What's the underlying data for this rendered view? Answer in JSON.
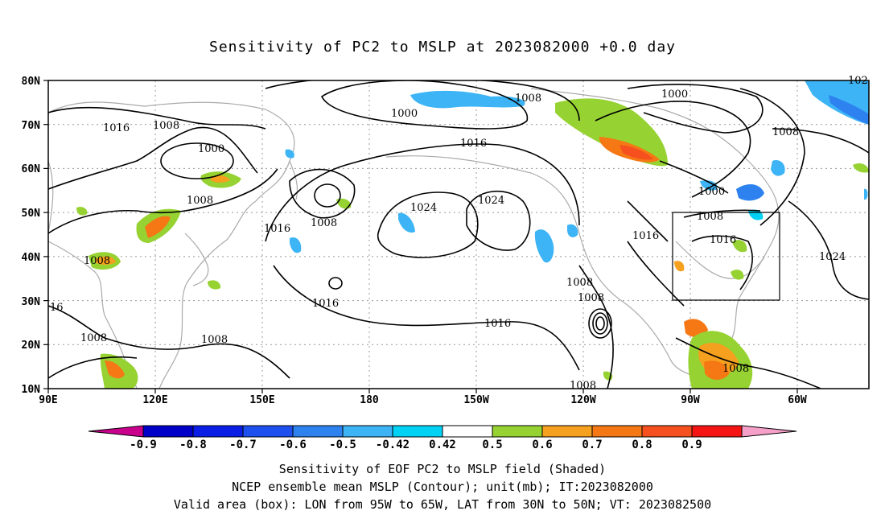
{
  "title": "Sensitivity of PC2 to MSLP at 2023082000 +0.0 day",
  "map": {
    "lat_labels": [
      "80N",
      "70N",
      "60N",
      "50N",
      "40N",
      "30N",
      "20N",
      "10N"
    ],
    "lon_labels": [
      "90E",
      "120E",
      "150E",
      "180",
      "150W",
      "120W",
      "90W",
      "60W"
    ],
    "contour_labels": [
      {
        "text": "1016"
      },
      {
        "text": "1008"
      },
      {
        "text": "1000"
      },
      {
        "text": "1008"
      },
      {
        "text": "1000"
      },
      {
        "text": "1008"
      },
      {
        "text": "1016"
      },
      {
        "text": "1000"
      },
      {
        "text": "1008"
      },
      {
        "text": "1016"
      },
      {
        "text": "1024"
      },
      {
        "text": "1024"
      },
      {
        "text": "1008"
      },
      {
        "text": "1016"
      },
      {
        "text": "1000"
      },
      {
        "text": "1008"
      },
      {
        "text": "1016"
      },
      {
        "text": "1024"
      },
      {
        "text": "1008"
      },
      {
        "text": "1016"
      },
      {
        "text": "1008"
      },
      {
        "text": "1008"
      },
      {
        "text": "1016"
      },
      {
        "text": "1008"
      },
      {
        "text": "1008"
      },
      {
        "text": "1008"
      },
      {
        "text": "16"
      },
      {
        "text": "102"
      }
    ],
    "valid_box": {
      "lon_from": "95W",
      "lon_to": "65W",
      "lat_from": "30N",
      "lat_to": "50N"
    }
  },
  "colorbar": {
    "labels": [
      "-0.9",
      "-0.8",
      "-0.7",
      "-0.6",
      "-0.5",
      "-0.42",
      "0.42",
      "0.5",
      "0.6",
      "0.7",
      "0.8",
      "0.9"
    ],
    "colors": [
      "#c8008c",
      "#0000c8",
      "#0a1ee6",
      "#1e50f0",
      "#2d82f0",
      "#3cb4f5",
      "#00d2f5",
      "#ffffff",
      "#96d232",
      "#f5a01e",
      "#f57814",
      "#f5501e",
      "#f51414",
      "#f5a0c8"
    ]
  },
  "captions": {
    "line1": "Sensitivity of EOF PC2 to MSLP field (Shaded)",
    "line2": "NCEP ensemble mean MSLP (Contour); unit(mb); IT:2023082000",
    "line3": "Valid area (box): LON from 95W to 65W, LAT from 30N to 50N; VT: 2023082500"
  }
}
